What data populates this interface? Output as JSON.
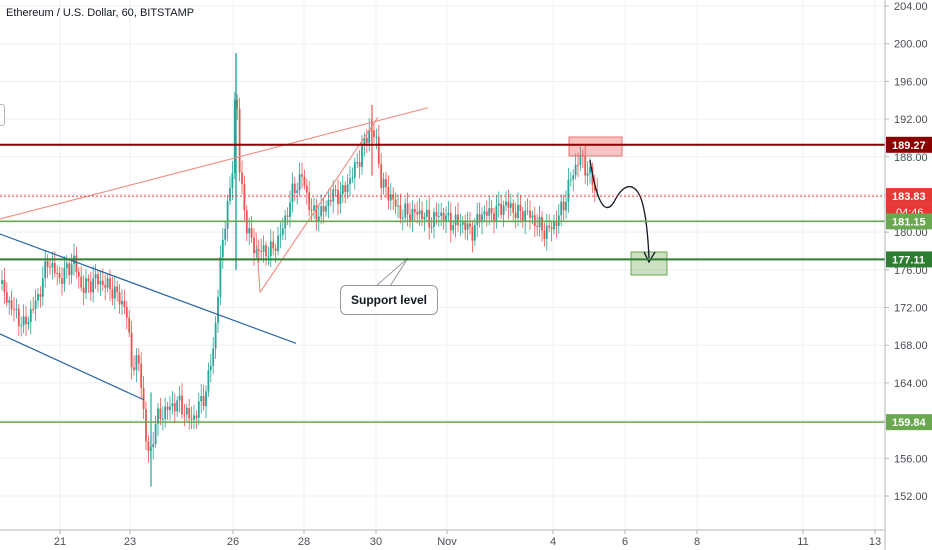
{
  "header": {
    "symbol": "Ethereum / U.S. Dollar",
    "interval": "60",
    "exchange": "BITSTAMP"
  },
  "annotation": {
    "callout": "Support level"
  },
  "chart_data": {
    "type": "candlestick",
    "ylim": [
      150,
      206
    ],
    "y_ticks": [
      152,
      156,
      160,
      164,
      168,
      172,
      176,
      180,
      184,
      188,
      192,
      196,
      200,
      204
    ],
    "x_ticks": [
      "21",
      "23",
      "26",
      "28",
      "30",
      "Nov",
      "4",
      "6",
      "8",
      "11",
      "13"
    ],
    "levels": [
      {
        "price": 189.27,
        "label": "189.27",
        "role": "resistance",
        "color": "#8b0000"
      },
      {
        "price": 183.83,
        "label": "183.83",
        "role": "last-price",
        "color": "#e53935"
      },
      {
        "price": 181.15,
        "label": "181.15",
        "role": "support",
        "color": "#6aa84f"
      },
      {
        "price": 177.11,
        "label": "177.11",
        "role": "support",
        "color": "#2e7d32"
      },
      {
        "price": 159.84,
        "label": "159.84",
        "role": "support",
        "color": "#6aa84f"
      }
    ],
    "countdown": "04:46",
    "colors": {
      "up": "#26a69a",
      "down": "#ef5350",
      "channel": "#2962a4",
      "wedge": "#f28b82",
      "support": "#6aa84f"
    }
  }
}
